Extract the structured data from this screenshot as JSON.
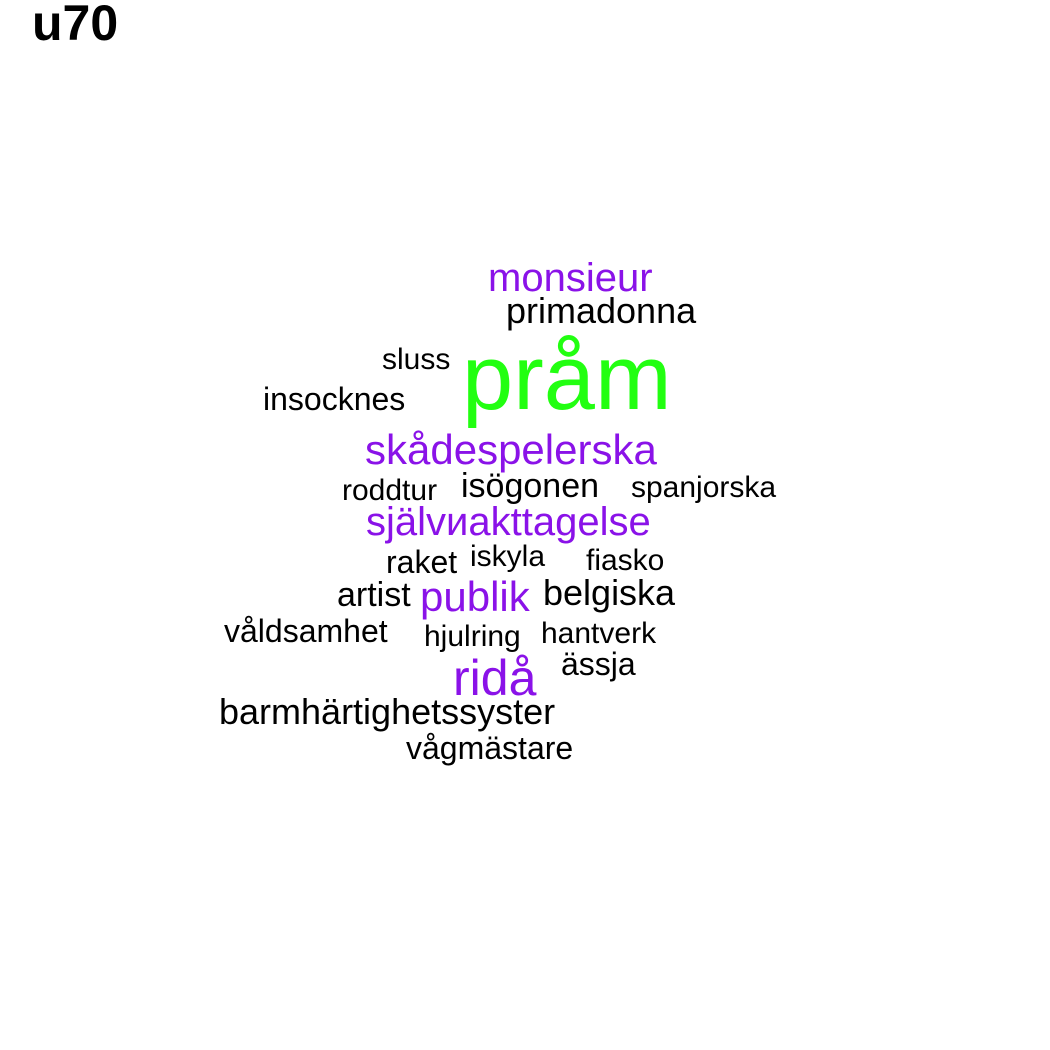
{
  "title": "u70",
  "colors": {
    "accent_green": "#22ff11",
    "accent_purple": "#8a12e8",
    "default": "#000000"
  },
  "words": {
    "monsieur": "monsieur",
    "primadonna": "primadonna",
    "sluss": "sluss",
    "pram": "pråm",
    "insocknes": "insocknes",
    "skadespelerska": "skådespelerska",
    "roddtur": "roddtur",
    "isogonen": "isögonen",
    "spanjorska": "spanjorska",
    "sjalviakttagelse": "självиakttagelse",
    "raket": "raket",
    "iskyla": "iskyla",
    "fiasko": "fiasko",
    "artist": "artist",
    "publik": "publik",
    "belgiska": "belgiska",
    "valdsamhet": "våldsamhet",
    "hjulring": "hjulring",
    "hantverk": "hantverk",
    "assja": "ässja",
    "rida": "ridå",
    "barmhartighetssyster": "barmhärtighetssyster",
    "vagmastare": "vågmästare"
  }
}
